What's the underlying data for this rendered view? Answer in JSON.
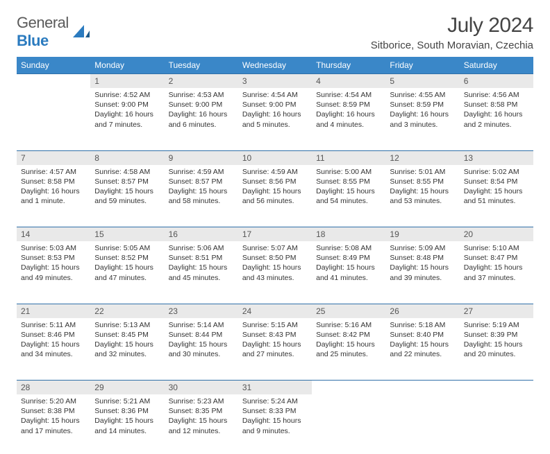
{
  "brand": {
    "part1": "General",
    "part2": "Blue"
  },
  "title": "July 2024",
  "location": "Sitborice, South Moravian, Czechia",
  "colors": {
    "header_bg": "#3a87c8",
    "header_border": "#2f6fa8",
    "daynum_bg": "#e9e9e9",
    "text": "#333333",
    "logo_gray": "#5a5a5a",
    "logo_blue": "#2b7bbf"
  },
  "weekdays": [
    "Sunday",
    "Monday",
    "Tuesday",
    "Wednesday",
    "Thursday",
    "Friday",
    "Saturday"
  ],
  "weeks": [
    {
      "nums": [
        "",
        "1",
        "2",
        "3",
        "4",
        "5",
        "6"
      ],
      "details": [
        "",
        "Sunrise: 4:52 AM\nSunset: 9:00 PM\nDaylight: 16 hours and 7 minutes.",
        "Sunrise: 4:53 AM\nSunset: 9:00 PM\nDaylight: 16 hours and 6 minutes.",
        "Sunrise: 4:54 AM\nSunset: 9:00 PM\nDaylight: 16 hours and 5 minutes.",
        "Sunrise: 4:54 AM\nSunset: 8:59 PM\nDaylight: 16 hours and 4 minutes.",
        "Sunrise: 4:55 AM\nSunset: 8:59 PM\nDaylight: 16 hours and 3 minutes.",
        "Sunrise: 4:56 AM\nSunset: 8:58 PM\nDaylight: 16 hours and 2 minutes."
      ]
    },
    {
      "nums": [
        "7",
        "8",
        "9",
        "10",
        "11",
        "12",
        "13"
      ],
      "details": [
        "Sunrise: 4:57 AM\nSunset: 8:58 PM\nDaylight: 16 hours and 1 minute.",
        "Sunrise: 4:58 AM\nSunset: 8:57 PM\nDaylight: 15 hours and 59 minutes.",
        "Sunrise: 4:59 AM\nSunset: 8:57 PM\nDaylight: 15 hours and 58 minutes.",
        "Sunrise: 4:59 AM\nSunset: 8:56 PM\nDaylight: 15 hours and 56 minutes.",
        "Sunrise: 5:00 AM\nSunset: 8:55 PM\nDaylight: 15 hours and 54 minutes.",
        "Sunrise: 5:01 AM\nSunset: 8:55 PM\nDaylight: 15 hours and 53 minutes.",
        "Sunrise: 5:02 AM\nSunset: 8:54 PM\nDaylight: 15 hours and 51 minutes."
      ]
    },
    {
      "nums": [
        "14",
        "15",
        "16",
        "17",
        "18",
        "19",
        "20"
      ],
      "details": [
        "Sunrise: 5:03 AM\nSunset: 8:53 PM\nDaylight: 15 hours and 49 minutes.",
        "Sunrise: 5:05 AM\nSunset: 8:52 PM\nDaylight: 15 hours and 47 minutes.",
        "Sunrise: 5:06 AM\nSunset: 8:51 PM\nDaylight: 15 hours and 45 minutes.",
        "Sunrise: 5:07 AM\nSunset: 8:50 PM\nDaylight: 15 hours and 43 minutes.",
        "Sunrise: 5:08 AM\nSunset: 8:49 PM\nDaylight: 15 hours and 41 minutes.",
        "Sunrise: 5:09 AM\nSunset: 8:48 PM\nDaylight: 15 hours and 39 minutes.",
        "Sunrise: 5:10 AM\nSunset: 8:47 PM\nDaylight: 15 hours and 37 minutes."
      ]
    },
    {
      "nums": [
        "21",
        "22",
        "23",
        "24",
        "25",
        "26",
        "27"
      ],
      "details": [
        "Sunrise: 5:11 AM\nSunset: 8:46 PM\nDaylight: 15 hours and 34 minutes.",
        "Sunrise: 5:13 AM\nSunset: 8:45 PM\nDaylight: 15 hours and 32 minutes.",
        "Sunrise: 5:14 AM\nSunset: 8:44 PM\nDaylight: 15 hours and 30 minutes.",
        "Sunrise: 5:15 AM\nSunset: 8:43 PM\nDaylight: 15 hours and 27 minutes.",
        "Sunrise: 5:16 AM\nSunset: 8:42 PM\nDaylight: 15 hours and 25 minutes.",
        "Sunrise: 5:18 AM\nSunset: 8:40 PM\nDaylight: 15 hours and 22 minutes.",
        "Sunrise: 5:19 AM\nSunset: 8:39 PM\nDaylight: 15 hours and 20 minutes."
      ]
    },
    {
      "nums": [
        "28",
        "29",
        "30",
        "31",
        "",
        "",
        ""
      ],
      "details": [
        "Sunrise: 5:20 AM\nSunset: 8:38 PM\nDaylight: 15 hours and 17 minutes.",
        "Sunrise: 5:21 AM\nSunset: 8:36 PM\nDaylight: 15 hours and 14 minutes.",
        "Sunrise: 5:23 AM\nSunset: 8:35 PM\nDaylight: 15 hours and 12 minutes.",
        "Sunrise: 5:24 AM\nSunset: 8:33 PM\nDaylight: 15 hours and 9 minutes.",
        "",
        "",
        ""
      ]
    }
  ]
}
